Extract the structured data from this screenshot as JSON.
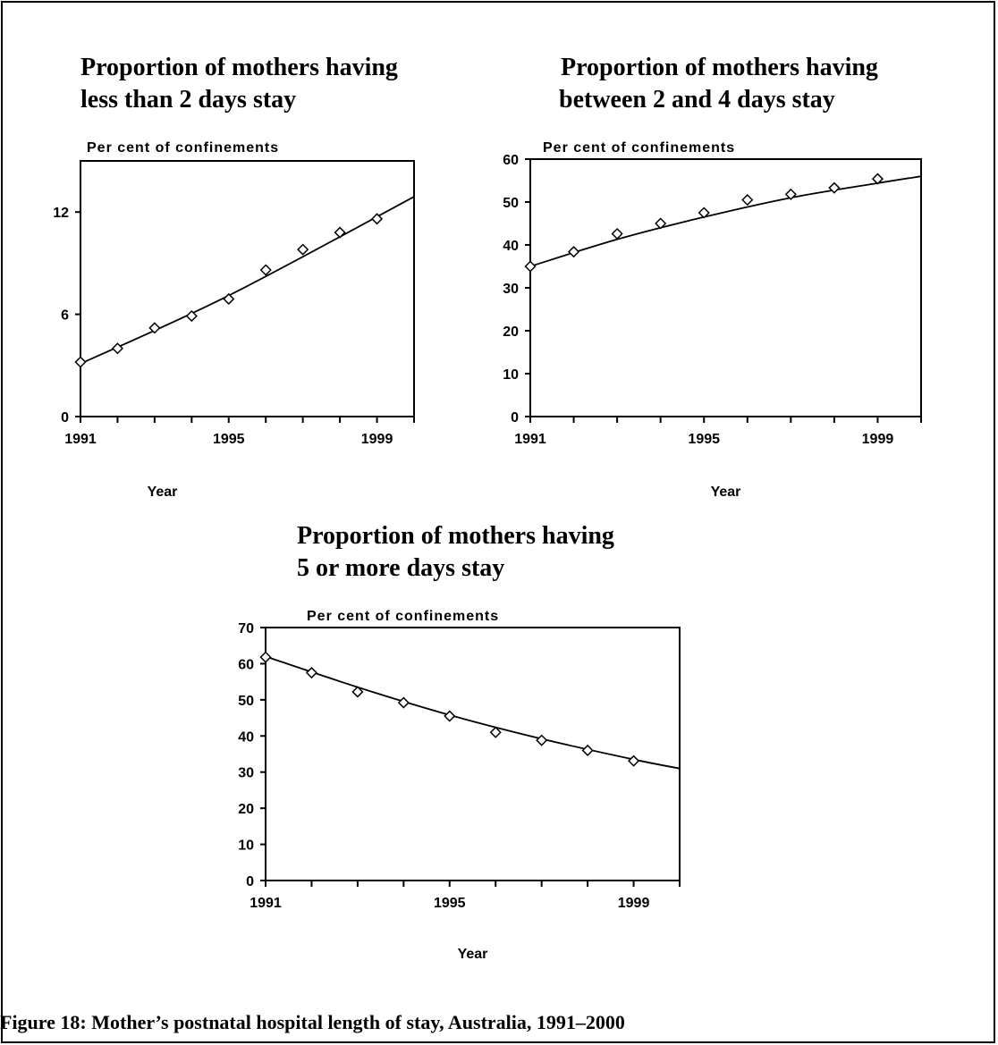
{
  "figure_caption": "Figure 18: Mother’s postnatal hospital length of stay, Australia, 1991–2000",
  "chart_data": [
    {
      "type": "scatter",
      "title": "Proportion of mothers having less than 2 days stay",
      "title_lines": [
        "Proportion of mothers having",
        "less than 2 days stay"
      ],
      "ylabel": "Per cent of confinements",
      "xlabel": "Year",
      "xlim": [
        1991,
        2000
      ],
      "ylim": [
        0,
        15
      ],
      "xticks": [
        1991,
        1995,
        1999
      ],
      "yticks": [
        0,
        6,
        12
      ],
      "grid": false,
      "marker": "diamond",
      "trendline": true,
      "x": [
        1991,
        1992,
        1993,
        1994,
        1995,
        1996,
        1997,
        1998,
        1999
      ],
      "values": [
        3.2,
        4.0,
        5.2,
        5.9,
        6.9,
        8.6,
        9.8,
        10.8,
        11.6
      ],
      "trend": [
        [
          1991,
          3.1
        ],
        [
          1995,
          7.1
        ],
        [
          2000,
          12.9
        ]
      ]
    },
    {
      "type": "scatter",
      "title": "Proportion of mothers having between 2 and 4 days stay",
      "title_lines": [
        "Proportion of mothers having",
        "between 2 and 4 days stay"
      ],
      "ylabel": "Per cent of confinements",
      "xlabel": "Year",
      "xlim": [
        1991,
        2000
      ],
      "ylim": [
        0,
        60
      ],
      "xticks": [
        1991,
        1995,
        1999
      ],
      "yticks": [
        0,
        10,
        20,
        30,
        40,
        50,
        60
      ],
      "grid": false,
      "marker": "diamond",
      "trendline": true,
      "x": [
        1991,
        1992,
        1993,
        1994,
        1995,
        1996,
        1997,
        1998,
        1999
      ],
      "values": [
        35.0,
        38.4,
        42.6,
        45.0,
        47.5,
        50.5,
        51.8,
        53.3,
        55.4
      ],
      "trend": [
        [
          1991,
          35.0
        ],
        [
          1993,
          41.3
        ],
        [
          1995,
          46.5
        ],
        [
          1997,
          51.0
        ],
        [
          1999,
          54.4
        ],
        [
          2000,
          56.0
        ]
      ]
    },
    {
      "type": "scatter",
      "title": "Proportion of mothers having 5 or more days stay",
      "title_lines": [
        "Proportion of mothers having",
        "5 or more days stay"
      ],
      "ylabel": "Per cent of confinements",
      "xlabel": "Year",
      "xlim": [
        1991,
        2000
      ],
      "ylim": [
        0,
        70
      ],
      "xticks": [
        1991,
        1995,
        1999
      ],
      "yticks": [
        0,
        10,
        20,
        30,
        40,
        50,
        60,
        70
      ],
      "grid": false,
      "marker": "diamond",
      "trendline": true,
      "x": [
        1991,
        1992,
        1993,
        1994,
        1995,
        1996,
        1997,
        1998,
        1999
      ],
      "values": [
        61.8,
        57.5,
        52.2,
        49.2,
        45.5,
        41.0,
        38.8,
        36.0,
        33.1
      ],
      "trend": [
        [
          1991,
          62.0
        ],
        [
          1993,
          53.5
        ],
        [
          1995,
          45.8
        ],
        [
          1997,
          39.2
        ],
        [
          1999,
          33.5
        ],
        [
          2000,
          31.0
        ]
      ]
    }
  ]
}
